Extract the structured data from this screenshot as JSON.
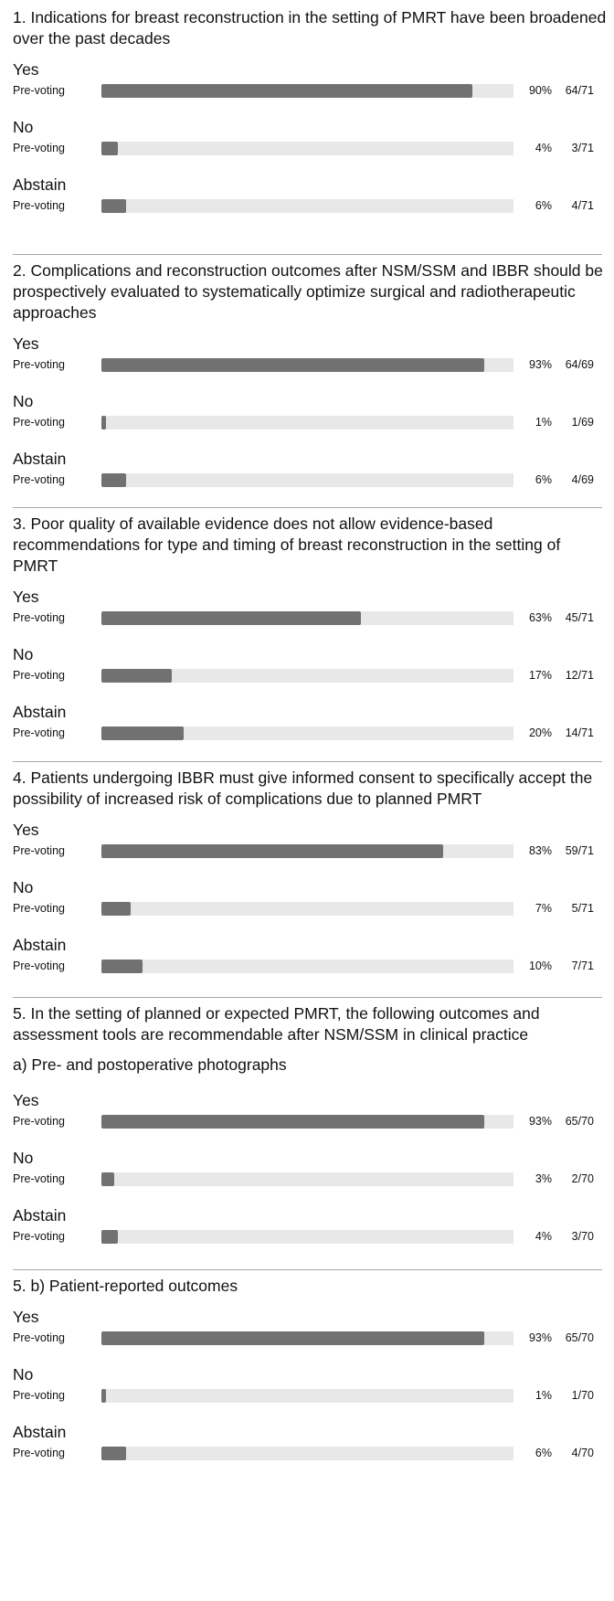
{
  "chart_data": {
    "type": "bar",
    "orientation": "horizontal",
    "xlim": [
      0,
      100
    ],
    "grid": false,
    "questions": [
      {
        "title": "1. Indications for breast reconstruction in the setting of PMRT have been broadened over the past decades",
        "subtitle": "",
        "options": [
          {
            "label": "Yes",
            "row_label": "Pre-voting",
            "percent_label": "90%",
            "count_label": "64/71",
            "value": 90
          },
          {
            "label": "No",
            "row_label": "Pre-voting",
            "percent_label": "4%",
            "count_label": "3/71",
            "value": 4
          },
          {
            "label": "Abstain",
            "row_label": "Pre-voting",
            "percent_label": "6%",
            "count_label": "4/71",
            "value": 6
          }
        ]
      },
      {
        "title": "2. Complications and reconstruction outcomes after NSM/SSM and IBBR should be prospectively evaluated to systematically optimize surgical and radiotherapeutic approaches",
        "subtitle": "",
        "options": [
          {
            "label": "Yes",
            "row_label": "Pre-voting",
            "percent_label": "93%",
            "count_label": "64/69",
            "value": 93
          },
          {
            "label": "No",
            "row_label": "Pre-voting",
            "percent_label": "1%",
            "count_label": "1/69",
            "value": 1
          },
          {
            "label": "Abstain",
            "row_label": "Pre-voting",
            "percent_label": "6%",
            "count_label": "4/69",
            "value": 6
          }
        ]
      },
      {
        "title": "3. Poor quality of available evidence does not allow evidence-based recommendations for type and timing of breast reconstruction in the setting of PMRT",
        "subtitle": "",
        "options": [
          {
            "label": "Yes",
            "row_label": "Pre-voting",
            "percent_label": "63%",
            "count_label": "45/71",
            "value": 63
          },
          {
            "label": "No",
            "row_label": "Pre-voting",
            "percent_label": "17%",
            "count_label": "12/71",
            "value": 17
          },
          {
            "label": "Abstain",
            "row_label": "Pre-voting",
            "percent_label": "20%",
            "count_label": "14/71",
            "value": 20
          }
        ]
      },
      {
        "title": "4. Patients undergoing IBBR must give informed consent to specifically accept the possibility of increased risk of complications due to planned PMRT",
        "subtitle": "",
        "options": [
          {
            "label": "Yes",
            "row_label": "Pre-voting",
            "percent_label": "83%",
            "count_label": "59/71",
            "value": 83
          },
          {
            "label": "No",
            "row_label": "Pre-voting",
            "percent_label": "7%",
            "count_label": "5/71",
            "value": 7
          },
          {
            "label": "Abstain",
            "row_label": "Pre-voting",
            "percent_label": "10%",
            "count_label": "7/71",
            "value": 10
          }
        ]
      },
      {
        "title": "5. In the setting of planned or expected PMRT, the following outcomes and assessment tools are recommendable after NSM/SSM in clinical practice",
        "subtitle": "a) Pre- and postoperative photographs",
        "options": [
          {
            "label": "Yes",
            "row_label": "Pre-voting",
            "percent_label": "93%",
            "count_label": "65/70",
            "value": 93
          },
          {
            "label": "No",
            "row_label": "Pre-voting",
            "percent_label": "3%",
            "count_label": "2/70",
            "value": 3
          },
          {
            "label": "Abstain",
            "row_label": "Pre-voting",
            "percent_label": "4%",
            "count_label": "3/70",
            "value": 4
          }
        ]
      },
      {
        "title": "5. b) Patient-reported outcomes",
        "subtitle": "",
        "options": [
          {
            "label": "Yes",
            "row_label": "Pre-voting",
            "percent_label": "93%",
            "count_label": "65/70",
            "value": 93
          },
          {
            "label": "No",
            "row_label": "Pre-voting",
            "percent_label": "1%",
            "count_label": "1/70",
            "value": 1
          },
          {
            "label": "Abstain",
            "row_label": "Pre-voting",
            "percent_label": "6%",
            "count_label": "4/70",
            "value": 6
          }
        ]
      }
    ]
  },
  "colors": {
    "bar_fill": "#717171",
    "bar_track": "#e8e8e8",
    "divider": "#a8a8a8",
    "text": "#111111"
  }
}
